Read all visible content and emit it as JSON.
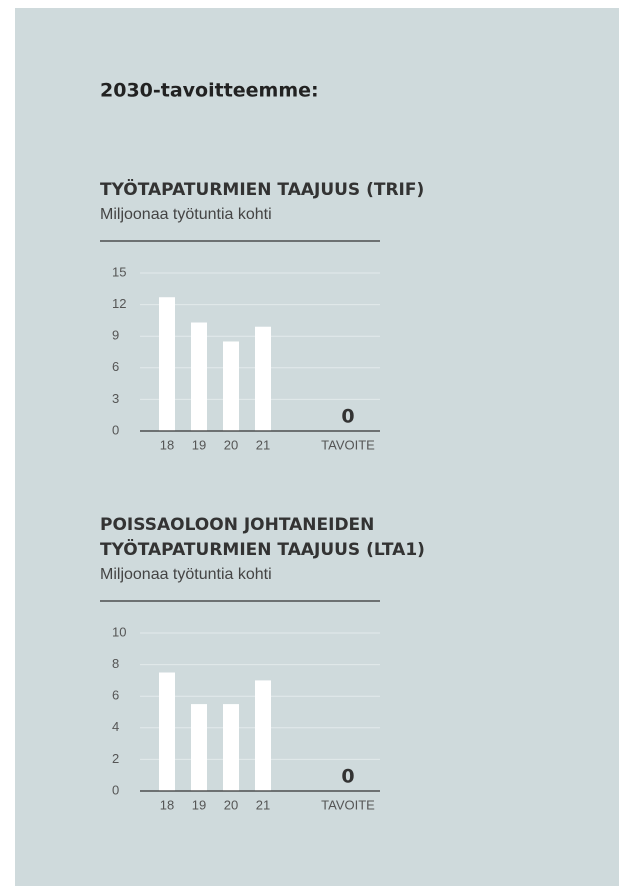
{
  "heading": "2030-tavoitteemme:",
  "chart_data": [
    {
      "type": "bar",
      "title": [
        "TYÖTAPATURMIEN TAAJUUS (TRIF)"
      ],
      "subtitle": "Miljoonaa työtuntia kohti",
      "categories": [
        "18",
        "19",
        "20",
        "21"
      ],
      "values": [
        12.7,
        10.3,
        8.5,
        9.9
      ],
      "color": "#ffffff",
      "target": {
        "category": "TAVOITE",
        "value": 0
      },
      "ylim": [
        0,
        15
      ],
      "yticks": [
        0,
        3,
        6,
        9,
        12,
        15
      ],
      "grid": true
    },
    {
      "type": "bar",
      "title": [
        "POISSAOLOON JOHTANEIDEN",
        "TYÖTAPATURMIEN TAAJUUS (LTA1)"
      ],
      "subtitle": "Miljoonaa työtuntia kohti",
      "categories": [
        "18",
        "19",
        "20",
        "21"
      ],
      "values": [
        7.5,
        5.5,
        5.5,
        7.0
      ],
      "color": "#ffffff",
      "target": {
        "category": "TAVOITE",
        "value": 0
      },
      "ylim": [
        0,
        10
      ],
      "yticks": [
        0,
        2,
        4,
        6,
        8,
        10
      ],
      "grid": true
    }
  ]
}
